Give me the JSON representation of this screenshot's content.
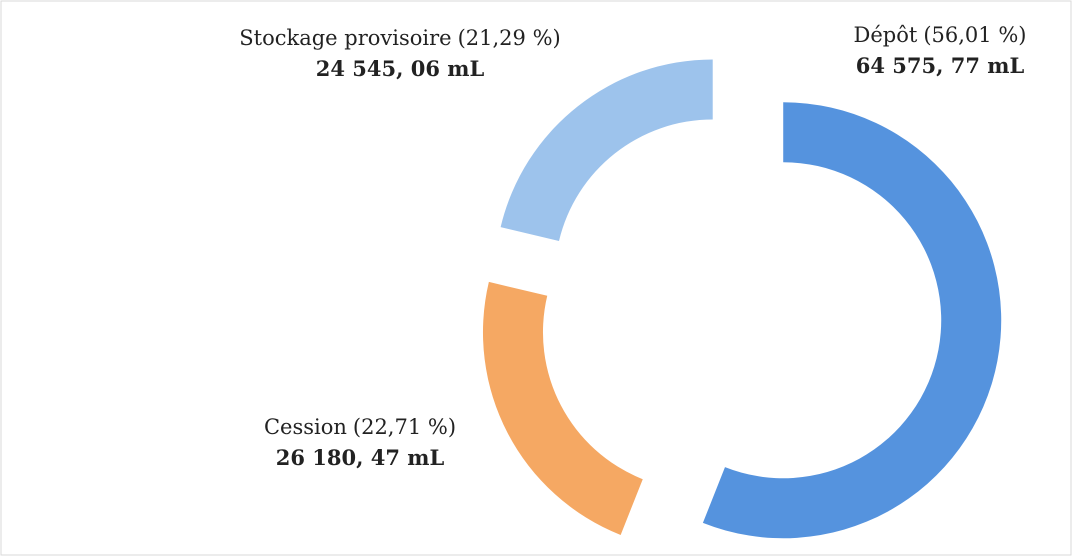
{
  "chart_data": {
    "type": "donut",
    "categories": [
      "Dépôt",
      "Cession",
      "Stockage provisoire"
    ],
    "percent_labels": [
      "(56,01 %)",
      "(22,71 %)",
      "(21,29 %)"
    ],
    "values": [
      64575.77,
      26180.47,
      24545.06
    ],
    "value_labels": [
      "64 575, 77 mL",
      "26 180, 47 mL",
      "24 545, 06 mL"
    ],
    "colors": [
      "#5593de",
      "#f5a863",
      "#9dc3ec"
    ]
  }
}
